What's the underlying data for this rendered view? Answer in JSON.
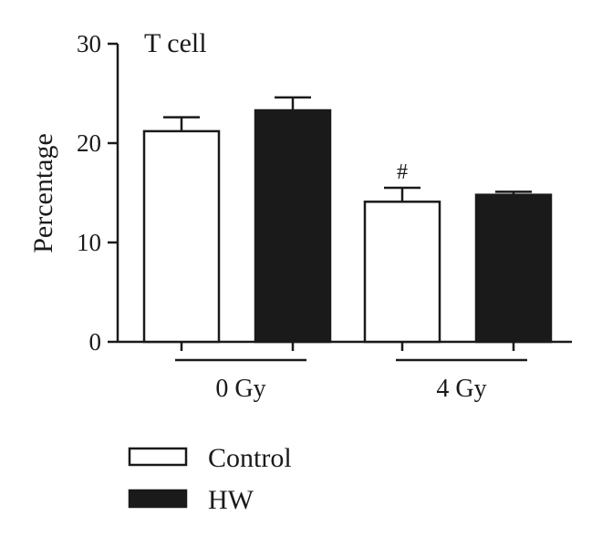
{
  "chart_data": {
    "type": "bar",
    "title": "T cell",
    "ylabel": "Percentage",
    "xlabel": "",
    "ylim": [
      0,
      30
    ],
    "yticks": [
      0,
      10,
      20,
      30
    ],
    "groups": [
      "0 Gy",
      "4 Gy"
    ],
    "series": [
      {
        "name": "Control",
        "values": [
          21.2,
          14.1
        ],
        "errors": [
          1.4,
          1.4
        ],
        "color": "#ffffff"
      },
      {
        "name": "HW",
        "values": [
          23.3,
          14.8
        ],
        "errors": [
          1.3,
          0.3
        ],
        "color": "#1a1a1a"
      }
    ],
    "annotations": [
      {
        "text": "#",
        "group": "4 Gy",
        "series": "Control"
      }
    ],
    "legend": "bottom-left",
    "grid": false
  }
}
